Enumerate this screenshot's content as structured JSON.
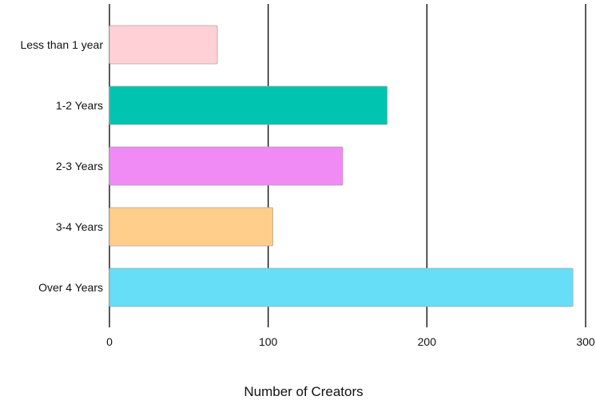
{
  "chart_data": {
    "type": "bar",
    "orientation": "horizontal",
    "categories": [
      "Less than 1 year",
      "1-2 Years",
      "2-3 Years",
      "3-4 Years",
      "Over 4 Years"
    ],
    "values": [
      68,
      175,
      147,
      103,
      292
    ],
    "colors": [
      "#FFD1D6",
      "#00C4B0",
      "#F08AF5",
      "#FFCE8A",
      "#66DEF7"
    ],
    "bar_edge_color": "#a8a8a8",
    "xlim": [
      0,
      300
    ],
    "x_ticks": [
      0,
      100,
      200,
      300
    ],
    "x_tick_labels": [
      "0",
      "100",
      "200",
      "300"
    ],
    "xlabel": "Number of Creators",
    "ylabel": "",
    "title": "",
    "grid": "vertical lines at x ticks",
    "legend": "none"
  }
}
